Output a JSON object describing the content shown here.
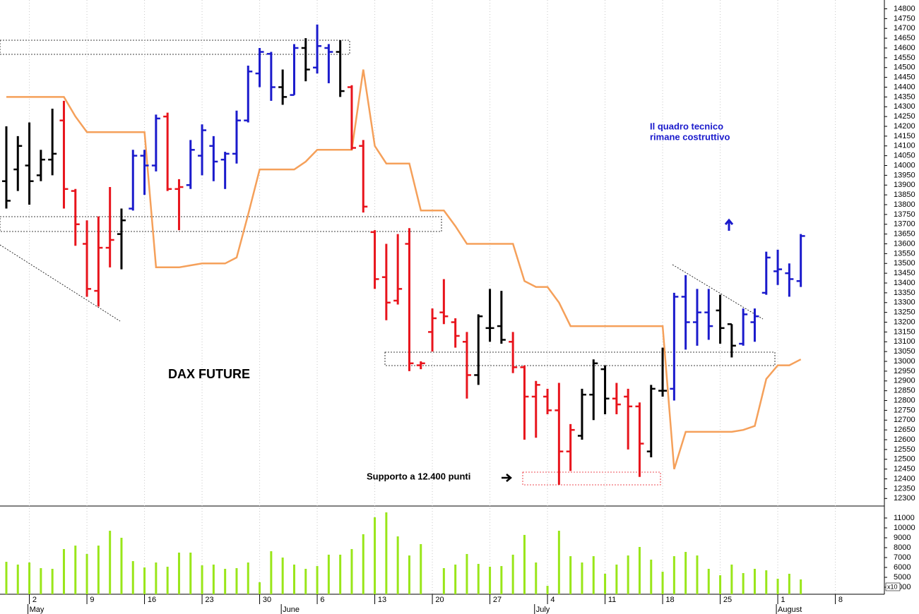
{
  "chart_data": [
    {
      "type": "ohlc",
      "title": "DAX FUTURE",
      "annotations": [
        "Il quadro tecnico",
        "rimane costruttivo",
        "Supporto a 12.400 punti"
      ],
      "annotation_color": "#1a1acc",
      "xlim": [
        -0.55,
        76.26
      ],
      "ylim": [
        12265,
        14845
      ],
      "yticks": [
        12300,
        12350,
        12400,
        12450,
        12500,
        12550,
        12600,
        12650,
        12700,
        12750,
        12800,
        12850,
        12900,
        12950,
        13000,
        13050,
        13100,
        13150,
        13200,
        13250,
        13300,
        13350,
        13400,
        13450,
        13500,
        13550,
        13600,
        13650,
        13700,
        13750,
        13800,
        13850,
        13900,
        13950,
        14000,
        14050,
        14100,
        14150,
        14200,
        14250,
        14300,
        14350,
        14400,
        14450,
        14500,
        14550,
        14600,
        14650,
        14700,
        14750,
        14800
      ],
      "open": [
        13920,
        13980,
        14000,
        13950,
        14030,
        14230,
        13870,
        13600,
        13360,
        13580,
        13650,
        13780,
        14050,
        14000,
        14250,
        13880,
        13900,
        14050,
        14100,
        14030,
        14060,
        14230,
        14470,
        14570,
        14400,
        14360,
        14600,
        14500,
        14600,
        14580,
        14400,
        14100,
        13660,
        13430,
        13310,
        13600,
        12980,
        13150,
        13250,
        13200,
        13100,
        12930,
        13170,
        13180,
        13100,
        12970,
        12820,
        12820,
        12750,
        12540,
        12620,
        12830,
        12960,
        12810,
        12820,
        12770,
        12540,
        12850,
        12860,
        13330,
        13200,
        13250,
        13260,
        13190,
        13090,
        13200,
        13350,
        13460,
        13450,
        13410
      ],
      "high": [
        14200,
        14150,
        14220,
        14080,
        14290,
        14330,
        13880,
        13720,
        13740,
        13890,
        13780,
        14080,
        14080,
        14260,
        14270,
        13930,
        14130,
        14210,
        14150,
        14070,
        14280,
        14510,
        14600,
        14580,
        14490,
        14620,
        14650,
        14720,
        14620,
        14640,
        14410,
        14130,
        13670,
        13600,
        13650,
        13680,
        13000,
        13270,
        13420,
        13220,
        13150,
        13240,
        13370,
        13360,
        13150,
        12980,
        12900,
        12860,
        12890,
        12680,
        12860,
        13010,
        12980,
        12890,
        12860,
        12790,
        12880,
        13070,
        13350,
        13440,
        13370,
        13370,
        13340,
        13190,
        13270,
        13270,
        13560,
        13570,
        13500,
        13650
      ],
      "low": [
        13780,
        13870,
        13800,
        13920,
        13950,
        13780,
        13590,
        13330,
        13280,
        13480,
        13470,
        13770,
        13850,
        13970,
        13870,
        13670,
        13880,
        13950,
        13920,
        13880,
        14010,
        14220,
        14400,
        14330,
        14310,
        14360,
        14430,
        14470,
        14420,
        14350,
        14080,
        13760,
        13370,
        13210,
        13290,
        12950,
        12960,
        13050,
        13190,
        13070,
        12810,
        12880,
        13100,
        13090,
        12940,
        12600,
        12610,
        12730,
        12370,
        12440,
        12600,
        12700,
        12730,
        12730,
        12550,
        12410,
        12510,
        12820,
        12800,
        13060,
        13080,
        13110,
        13090,
        13020,
        13080,
        13100,
        13340,
        13390,
        13330,
        13380
      ],
      "close": [
        13820,
        14100,
        13920,
        14030,
        14060,
        13880,
        13700,
        13370,
        13580,
        13620,
        13720,
        14050,
        14000,
        14240,
        13880,
        13890,
        14080,
        14180,
        14020,
        14060,
        14230,
        14480,
        14580,
        14400,
        14350,
        14600,
        14490,
        14610,
        14580,
        14380,
        14090,
        13790,
        13420,
        13300,
        13370,
        12990,
        12990,
        13220,
        13230,
        13130,
        12930,
        13230,
        13170,
        13110,
        12970,
        12820,
        12880,
        12750,
        12540,
        12650,
        12830,
        12990,
        12810,
        12780,
        12770,
        12580,
        12860,
        12850,
        13330,
        13200,
        13250,
        13180,
        13170,
        13080,
        13240,
        13230,
        13530,
        13470,
        13420,
        13640
      ],
      "colors": [
        "#000000",
        "#000000",
        "#000000",
        "#000000",
        "#000000",
        "#e8141c",
        "#e8141c",
        "#e8141c",
        "#e8141c",
        "#e8141c",
        "#000000",
        "#1a1acc",
        "#1a1acc",
        "#1a1acc",
        "#e8141c",
        "#e8141c",
        "#1a1acc",
        "#1a1acc",
        "#1a1acc",
        "#1a1acc",
        "#1a1acc",
        "#1a1acc",
        "#1a1acc",
        "#1a1acc",
        "#000000",
        "#1a1acc",
        "#000000",
        "#1a1acc",
        "#1a1acc",
        "#000000",
        "#e8141c",
        "#e8141c",
        "#e8141c",
        "#e8141c",
        "#e8141c",
        "#e8141c",
        "#e8141c",
        "#e8141c",
        "#e8141c",
        "#e8141c",
        "#e8141c",
        "#000000",
        "#000000",
        "#000000",
        "#e8141c",
        "#e8141c",
        "#e8141c",
        "#e8141c",
        "#e8141c",
        "#e8141c",
        "#000000",
        "#000000",
        "#000000",
        "#e8141c",
        "#e8141c",
        "#e8141c",
        "#000000",
        "#000000",
        "#1a1acc",
        "#1a1acc",
        "#1a1acc",
        "#1a1acc",
        "#000000",
        "#000000",
        "#1a1acc",
        "#1a1acc",
        "#1a1acc",
        "#1a1acc",
        "#1a1acc",
        "#1a1acc"
      ],
      "stop": {
        "color": "#f5a05a",
        "values": [
          14350,
          14350,
          14350,
          14350,
          14350,
          14350,
          14250,
          14170,
          14170,
          14170,
          14170,
          14170,
          14170,
          13480,
          13480,
          13480,
          13490,
          13500,
          13500,
          13500,
          13530,
          13750,
          13980,
          13980,
          13980,
          13980,
          14020,
          14080,
          14080,
          14080,
          14080,
          14490,
          14100,
          14010,
          14010,
          14010,
          13770,
          13770,
          13770,
          13690,
          13600,
          13600,
          13600,
          13600,
          13600,
          13410,
          13380,
          13380,
          13300,
          13180,
          13180,
          13180,
          13180,
          13180,
          13180,
          13180,
          13180,
          13180,
          12450,
          12640,
          12640,
          12640,
          12640,
          12640,
          12650,
          12670,
          12910,
          12980,
          12980,
          13010
        ]
      }
    },
    {
      "type": "bar",
      "color": "#99e619",
      "multiplier_label": "x10",
      "xlim": [
        -0.55,
        76.26
      ],
      "ylim": [
        3290,
        12140
      ],
      "yticks": [
        4000,
        5000,
        6000,
        7000,
        8000,
        9000,
        10000,
        11000
      ],
      "xticks": [
        {
          "value": 2,
          "label": "2"
        },
        {
          "value": 7,
          "label": "9"
        },
        {
          "value": 12,
          "label": "16"
        },
        {
          "value": 17,
          "label": "23"
        },
        {
          "value": 22,
          "label": "30"
        },
        {
          "value": 27,
          "label": "6"
        },
        {
          "value": 32,
          "label": "13"
        },
        {
          "value": 37,
          "label": "20"
        },
        {
          "value": 42,
          "label": "27"
        },
        {
          "value": 47,
          "label": "4"
        },
        {
          "value": 52,
          "label": "11"
        },
        {
          "value": 57,
          "label": "18"
        },
        {
          "value": 62,
          "label": "25"
        },
        {
          "value": 67,
          "label": "1"
        },
        {
          "value": 72,
          "label": "8"
        }
      ],
      "months": [
        {
          "value": 2,
          "label": "May"
        },
        {
          "value": 24,
          "label": "June"
        },
        {
          "value": 46,
          "label": "July"
        },
        {
          "value": 67,
          "label": "August"
        }
      ],
      "values": [
        6570,
        6290,
        6500,
        5930,
        5860,
        7860,
        8210,
        7360,
        8210,
        9710,
        9000,
        6640,
        6000,
        6500,
        6070,
        7500,
        7500,
        6210,
        6290,
        5860,
        5930,
        6500,
        4500,
        7640,
        7000,
        6290,
        5860,
        6140,
        7290,
        7290,
        7860,
        9360,
        11070,
        11570,
        9140,
        7210,
        8360,
        null,
        5930,
        6290,
        7360,
        6360,
        6070,
        6140,
        7290,
        9290,
        6500,
        4140,
        9710,
        7140,
        6500,
        7140,
        5360,
        6290,
        7210,
        8070,
        6790,
        5570,
        7140,
        7570,
        7210,
        5860,
        5210,
        6290,
        5430,
        5860,
        5710,
        4860,
        5360,
        4790
      ]
    }
  ]
}
